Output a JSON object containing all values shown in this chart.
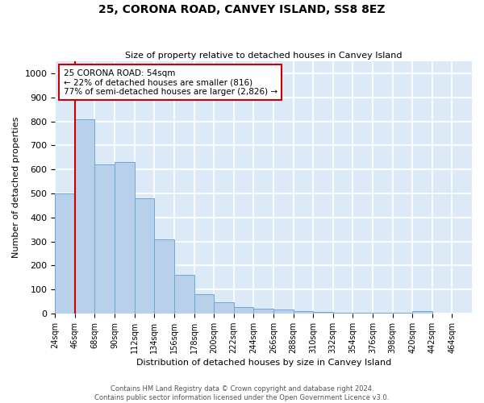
{
  "title": "25, CORONA ROAD, CANVEY ISLAND, SS8 8EZ",
  "subtitle": "Size of property relative to detached houses in Canvey Island",
  "xlabel": "Distribution of detached houses by size in Canvey Island",
  "ylabel": "Number of detached properties",
  "bar_values": [
    500,
    810,
    620,
    630,
    480,
    310,
    160,
    80,
    45,
    25,
    20,
    15,
    10,
    5,
    2,
    2,
    2,
    2,
    10,
    0,
    0
  ],
  "bin_labels": [
    "24sqm",
    "46sqm",
    "68sqm",
    "90sqm",
    "112sqm",
    "134sqm",
    "156sqm",
    "178sqm",
    "200sqm",
    "222sqm",
    "244sqm",
    "266sqm",
    "288sqm",
    "310sqm",
    "332sqm",
    "354sqm",
    "376sqm",
    "398sqm",
    "420sqm",
    "442sqm",
    "464sqm"
  ],
  "bar_color": "#b8d0ea",
  "bar_edge_color": "#6fa8d6",
  "reference_line_x": 1.0,
  "reference_line_color": "#cc0000",
  "annotation_text": "25 CORONA ROAD: 54sqm\n← 22% of detached houses are smaller (816)\n77% of semi-detached houses are larger (2,826) →",
  "annotation_box_color": "white",
  "annotation_box_edge_color": "#cc0000",
  "ylim": [
    0,
    1050
  ],
  "yticks": [
    0,
    100,
    200,
    300,
    400,
    500,
    600,
    700,
    800,
    900,
    1000
  ],
  "background_color": "#dce9f7",
  "grid_color": "white",
  "footer_line1": "Contains HM Land Registry data © Crown copyright and database right 2024.",
  "footer_line2": "Contains public sector information licensed under the Open Government Licence v3.0."
}
